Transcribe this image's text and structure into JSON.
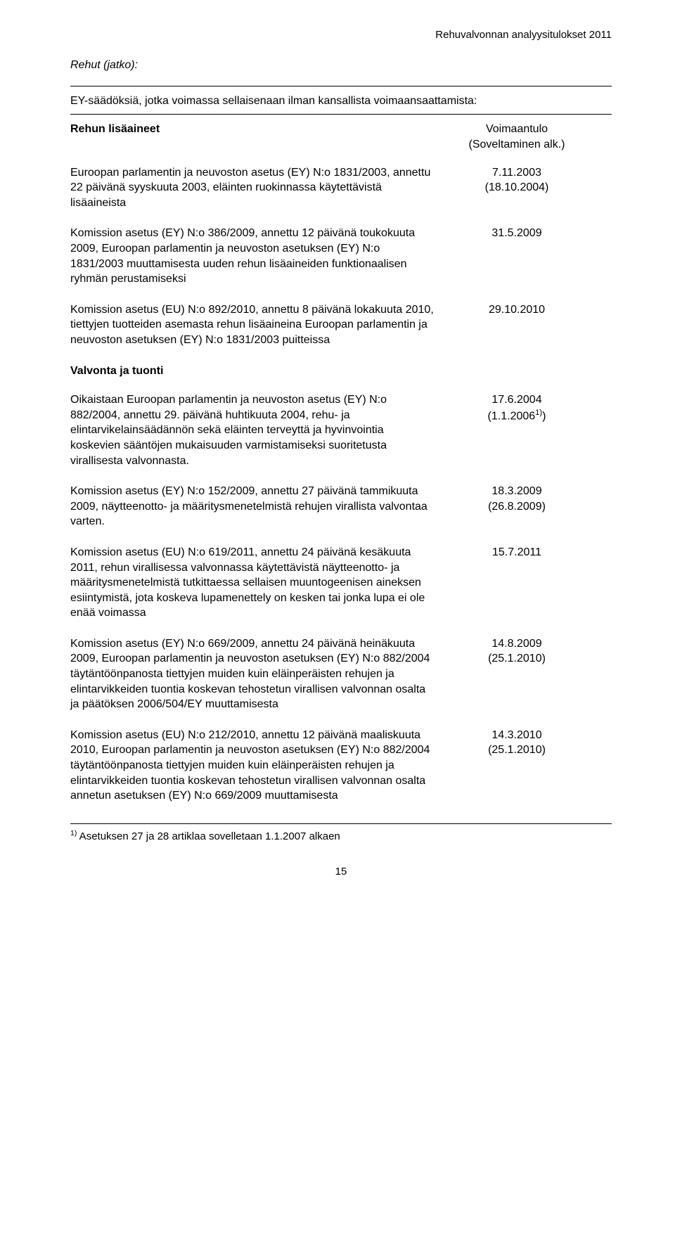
{
  "header_right": "Rehuvalvonnan analyysitulokset 2011",
  "section_italic": "Rehut (jatko):",
  "section_sub": "EY-säädöksiä, jotka voimassa sellaisenaan ilman kansallista voimaansaattamista:",
  "voimaantulo_left": "Rehun lisäaineet",
  "voimaantulo_right_1": "Voimaantulo",
  "voimaantulo_right_2": "(Soveltaminen alk.)",
  "entries_a": [
    {
      "text": "Euroopan parlamentin ja neuvoston asetus (EY) N:o 1831/2003, annettu 22 päivänä syyskuuta 2003, eläinten ruokinnassa käytettävistä lisäaineista",
      "d1": "7.11.2003",
      "d2": "(18.10.2004)"
    },
    {
      "text": "Komission asetus (EY) N:o 386/2009, annettu 12 päivänä toukokuuta 2009, Euroopan parlamentin ja neuvoston asetuksen (EY) N:o 1831/2003 muuttamisesta uuden rehun lisäaineiden funktionaalisen ryhmän perustamiseksi",
      "d1": "31.5.2009",
      "d2": ""
    },
    {
      "text": "Komission asetus (EU) N:o 892/2010, annettu 8 päivänä lokakuuta 2010, tiettyjen tuotteiden asemasta rehun lisäaineina Euroopan parlamentin ja neuvoston asetuksen (EY) N:o 1831/2003 puitteissa",
      "d1": "29.10.2010",
      "d2": ""
    }
  ],
  "section_b_heading": "Valvonta ja tuonti",
  "entries_b": [
    {
      "text": "Oikaistaan Euroopan parlamentin ja neuvoston asetus (EY) N:o 882/2004, annettu 29. päivänä huhtikuuta 2004, rehu- ja elintarvikelainsäädännön sekä eläinten terveyttä ja hyvinvointia koskevien sääntöjen mukaisuuden varmistamiseksi suoritetusta virallisesta valvonnasta.",
      "d1": "17.6.2004",
      "d2_pre": "(1.1.2006",
      "d2_sup": "1)",
      "d2_post": ")"
    },
    {
      "text": "Komission asetus (EY) N:o 152/2009, annettu 27 päivänä tammikuuta 2009, näytteenotto- ja määritysmenetelmistä rehujen virallista valvontaa varten.",
      "d1": "18.3.2009",
      "d2": "(26.8.2009)"
    },
    {
      "text": "Komission asetus (EU) N:o 619/2011, annettu 24 päivänä kesäkuuta 2011, rehun virallisessa valvonnassa käytettävistä näytteenotto- ja määritysmenetelmistä tutkittaessa sellaisen muuntogeenisen aineksen esiintymistä, jota koskeva lupamenettely on kesken tai jonka lupa ei ole enää voimassa",
      "d1": "15.7.2011",
      "d2": ""
    },
    {
      "text": "Komission asetus (EY) N:o 669/2009, annettu 24 päivänä heinäkuuta 2009, Euroopan parlamentin ja neuvoston asetuksen (EY) N:o 882/2004 täytäntöönpanosta tiettyjen muiden kuin eläinperäisten rehujen ja elintarvikkeiden tuontia koskevan tehostetun virallisen valvonnan osalta ja päätöksen 2006/504/EY muuttamisesta",
      "d1": "14.8.2009",
      "d2": "(25.1.2010)"
    },
    {
      "text": "Komission asetus (EU) N:o 212/2010, annettu 12 päivänä maaliskuuta 2010, Euroopan parlamentin ja neuvoston asetuksen (EY) N:o 882/2004 täytäntöönpanosta tiettyjen muiden kuin eläinperäisten rehujen ja elintarvikkeiden tuontia koskevan tehostetun virallisen valvonnan osalta annetun asetuksen (EY) N:o 669/2009 muuttamisesta",
      "d1": "14.3.2010",
      "d2": "(25.1.2010)"
    }
  ],
  "footnote_sup": "1)",
  "footnote_text": " Asetuksen 27 ja 28 artiklaa sovelletaan 1.1.2007 alkaen",
  "pagenum": "15"
}
